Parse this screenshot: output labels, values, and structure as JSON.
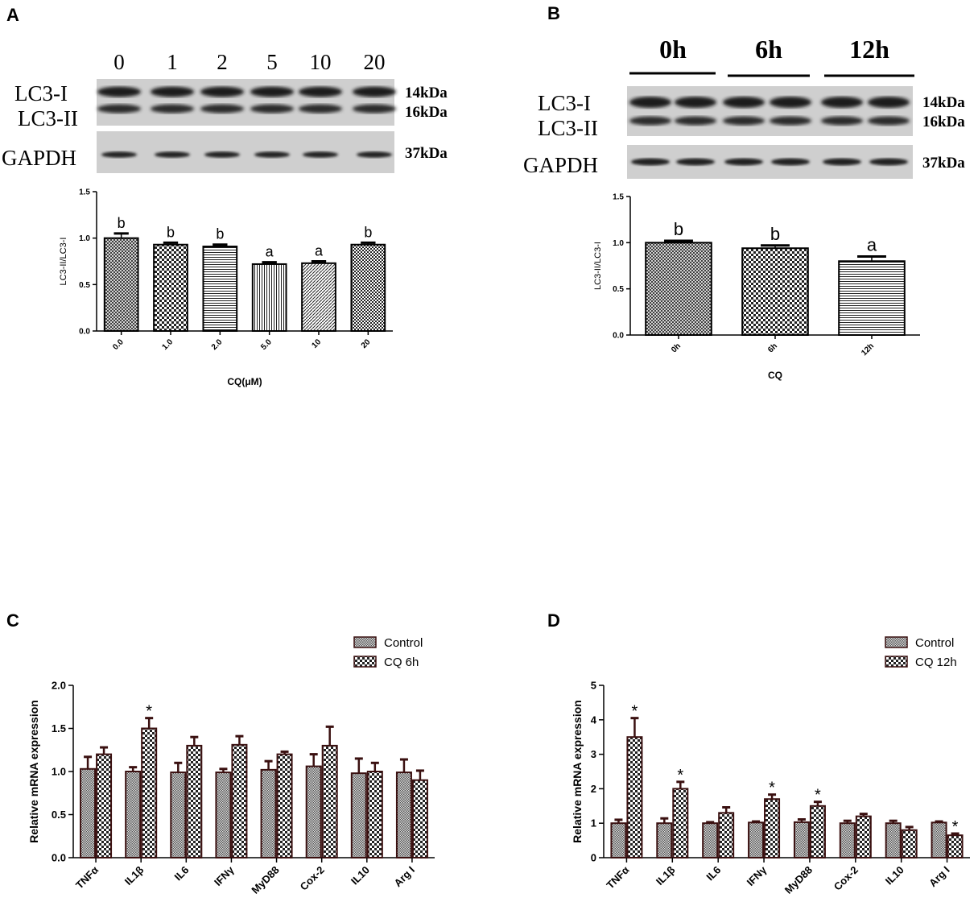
{
  "panels": {
    "A": {
      "letter": "A",
      "blot": {
        "lanes": [
          "0",
          "1",
          "2",
          "5",
          "10",
          "20"
        ],
        "row_labels": [
          "LC3-I",
          "LC3-II",
          "GAPDH"
        ],
        "kda_labels": [
          "14kDa",
          "16kDa",
          "37kDa"
        ]
      }
    },
    "B": {
      "letter": "B",
      "blot": {
        "lanes": [
          "0h",
          "6h",
          "12h"
        ],
        "row_labels": [
          "LC3-I",
          "LC3-II",
          "GAPDH"
        ],
        "kda_labels": [
          "14kDa",
          "16kDa",
          "37kDa"
        ]
      }
    },
    "C": {
      "letter": "C"
    },
    "D": {
      "letter": "D"
    }
  },
  "chart_data": [
    {
      "panel": "A",
      "type": "bar",
      "title": "",
      "xlabel": "CQ(μM)",
      "ylabel": "LC3-II/LC3-I",
      "categories": [
        "0.0",
        "1.0",
        "2.0",
        "5.0",
        "10",
        "20"
      ],
      "values": [
        1.0,
        0.93,
        0.91,
        0.72,
        0.73,
        0.93
      ],
      "errors": [
        0.05,
        0.02,
        0.02,
        0.02,
        0.02,
        0.02
      ],
      "annotations": [
        "b",
        "b",
        "b",
        "a",
        "a",
        "b"
      ],
      "patterns": [
        "crosshatch",
        "checker",
        "hlines",
        "vlines",
        "diag",
        "dense-checker"
      ],
      "ylim": [
        0,
        1.5
      ],
      "yticks": [
        "0.0",
        "0.5",
        "1.0",
        "1.5"
      ],
      "grid": false
    },
    {
      "panel": "B",
      "type": "bar",
      "title": "",
      "xlabel": "CQ",
      "ylabel": "LC3-II/LC3-I",
      "categories": [
        "0h",
        "6h",
        "12h"
      ],
      "values": [
        1.0,
        0.94,
        0.8
      ],
      "errors": [
        0.02,
        0.03,
        0.05
      ],
      "annotations": [
        "b",
        "b",
        "a"
      ],
      "patterns": [
        "crosshatch",
        "checker",
        "hlines"
      ],
      "ylim": [
        0,
        1.5
      ],
      "yticks": [
        "0.0",
        "0.5",
        "1.0",
        "1.5"
      ],
      "grid": false
    },
    {
      "panel": "C",
      "type": "bar",
      "title": "",
      "xlabel": "",
      "ylabel": "Relative mRNA expression",
      "categories": [
        "TNFα",
        "IL1β",
        "IL6",
        "IFNγ",
        "MyD88",
        "Cox-2",
        "IL10",
        "Arg I"
      ],
      "series": [
        {
          "name": "Control",
          "values": [
            1.03,
            1.0,
            0.99,
            0.99,
            1.02,
            1.06,
            0.98,
            0.99
          ],
          "errors": [
            0.14,
            0.05,
            0.11,
            0.04,
            0.1,
            0.14,
            0.17,
            0.15
          ]
        },
        {
          "name": "CQ 6h",
          "values": [
            1.2,
            1.5,
            1.3,
            1.31,
            1.2,
            1.3,
            1.0,
            0.9
          ],
          "errors": [
            0.08,
            0.12,
            0.1,
            0.1,
            0.03,
            0.22,
            0.1,
            0.11
          ]
        }
      ],
      "significance": [
        "",
        "*",
        "",
        "",
        "",
        "",
        "",
        ""
      ],
      "ylim": [
        0,
        2.0
      ],
      "yticks": [
        "0.0",
        "0.5",
        "1.0",
        "1.5",
        "2.0"
      ],
      "legend_position": "top-right",
      "grid": false
    },
    {
      "panel": "D",
      "type": "bar",
      "title": "",
      "xlabel": "",
      "ylabel": "Relative mRNA expression",
      "categories": [
        "TNFα",
        "IL1β",
        "IL6",
        "IFNγ",
        "MyD88",
        "Cox-2",
        "IL10",
        "Arg I"
      ],
      "series": [
        {
          "name": "Control",
          "values": [
            1.0,
            1.0,
            1.0,
            1.02,
            1.03,
            1.0,
            1.0,
            1.02
          ],
          "errors": [
            0.1,
            0.14,
            0.03,
            0.03,
            0.08,
            0.07,
            0.07,
            0.03
          ]
        },
        {
          "name": "CQ 12h",
          "values": [
            3.5,
            2.0,
            1.3,
            1.7,
            1.5,
            1.2,
            0.8,
            0.65
          ],
          "errors": [
            0.55,
            0.2,
            0.16,
            0.13,
            0.12,
            0.07,
            0.09,
            0.05
          ]
        }
      ],
      "significance": [
        "*",
        "*",
        "",
        "*",
        "*",
        "",
        "",
        "*"
      ],
      "ylim": [
        0,
        5
      ],
      "yticks": [
        "0",
        "1",
        "2",
        "3",
        "4",
        "5"
      ],
      "legend_position": "top-right",
      "grid": false
    }
  ]
}
